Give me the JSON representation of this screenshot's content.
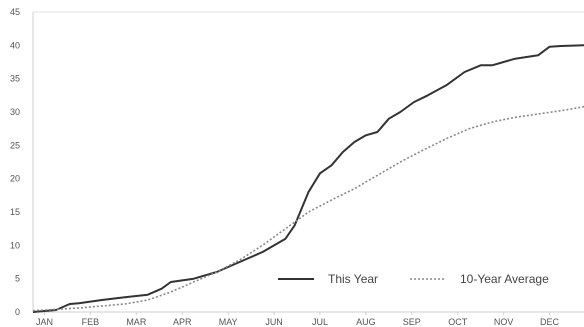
{
  "chart_data": {
    "type": "line",
    "title": "",
    "xlabel": "",
    "ylabel": "",
    "ylim": [
      0,
      45
    ],
    "yticks": [
      0,
      5,
      10,
      15,
      20,
      25,
      30,
      35,
      40,
      45
    ],
    "xlim": [
      0,
      12
    ],
    "xtick_positions": [
      0.25,
      1.25,
      2.25,
      3.25,
      4.25,
      5.25,
      6.25,
      7.25,
      8.25,
      9.25,
      10.25,
      11.25
    ],
    "xtick_labels": [
      "JAN",
      "FEB",
      "MAR",
      "APR",
      "MAY",
      "JUN",
      "JUL",
      "AUG",
      "SEP",
      "OCT",
      "NOV",
      "DEC"
    ],
    "grid": false,
    "legend_position": "bottom-right",
    "series": [
      {
        "name": "This Year",
        "style": "solid",
        "color": "#333333",
        "points": [
          [
            0,
            0
          ],
          [
            0.5,
            0.3
          ],
          [
            0.8,
            1.2
          ],
          [
            1.0,
            1.3
          ],
          [
            1.5,
            1.8
          ],
          [
            2.0,
            2.2
          ],
          [
            2.5,
            2.6
          ],
          [
            2.8,
            3.5
          ],
          [
            3.0,
            4.5
          ],
          [
            3.5,
            5.0
          ],
          [
            4.0,
            6.0
          ],
          [
            4.5,
            7.5
          ],
          [
            5.0,
            9.0
          ],
          [
            5.5,
            11.0
          ],
          [
            5.7,
            13.0
          ],
          [
            6.0,
            18.0
          ],
          [
            6.25,
            20.8
          ],
          [
            6.5,
            22.0
          ],
          [
            6.75,
            24.0
          ],
          [
            7.0,
            25.5
          ],
          [
            7.25,
            26.5
          ],
          [
            7.5,
            27.0
          ],
          [
            7.75,
            29.0
          ],
          [
            8.0,
            30.0
          ],
          [
            8.3,
            31.5
          ],
          [
            8.6,
            32.5
          ],
          [
            9.0,
            34.0
          ],
          [
            9.4,
            36.0
          ],
          [
            9.75,
            37.0
          ],
          [
            10.0,
            37.0
          ],
          [
            10.25,
            37.5
          ],
          [
            10.5,
            38.0
          ],
          [
            11.0,
            38.5
          ],
          [
            11.25,
            39.8
          ],
          [
            11.5,
            39.9
          ],
          [
            12.0,
            40.0
          ]
        ]
      },
      {
        "name": "10-Year Average",
        "style": "dotted",
        "color": "#888888",
        "points": [
          [
            0,
            0.2
          ],
          [
            1.0,
            0.6
          ],
          [
            2.0,
            1.2
          ],
          [
            2.5,
            1.8
          ],
          [
            3.0,
            3.0
          ],
          [
            3.5,
            4.5
          ],
          [
            4.0,
            6.0
          ],
          [
            4.5,
            7.8
          ],
          [
            5.0,
            10.0
          ],
          [
            5.5,
            12.5
          ],
          [
            6.0,
            15.0
          ],
          [
            6.5,
            16.8
          ],
          [
            7.0,
            18.5
          ],
          [
            7.5,
            20.5
          ],
          [
            8.0,
            22.5
          ],
          [
            8.5,
            24.3
          ],
          [
            9.0,
            26.0
          ],
          [
            9.5,
            27.5
          ],
          [
            10.0,
            28.5
          ],
          [
            10.5,
            29.2
          ],
          [
            11.0,
            29.7
          ],
          [
            11.5,
            30.2
          ],
          [
            12.0,
            30.8
          ]
        ]
      }
    ]
  }
}
